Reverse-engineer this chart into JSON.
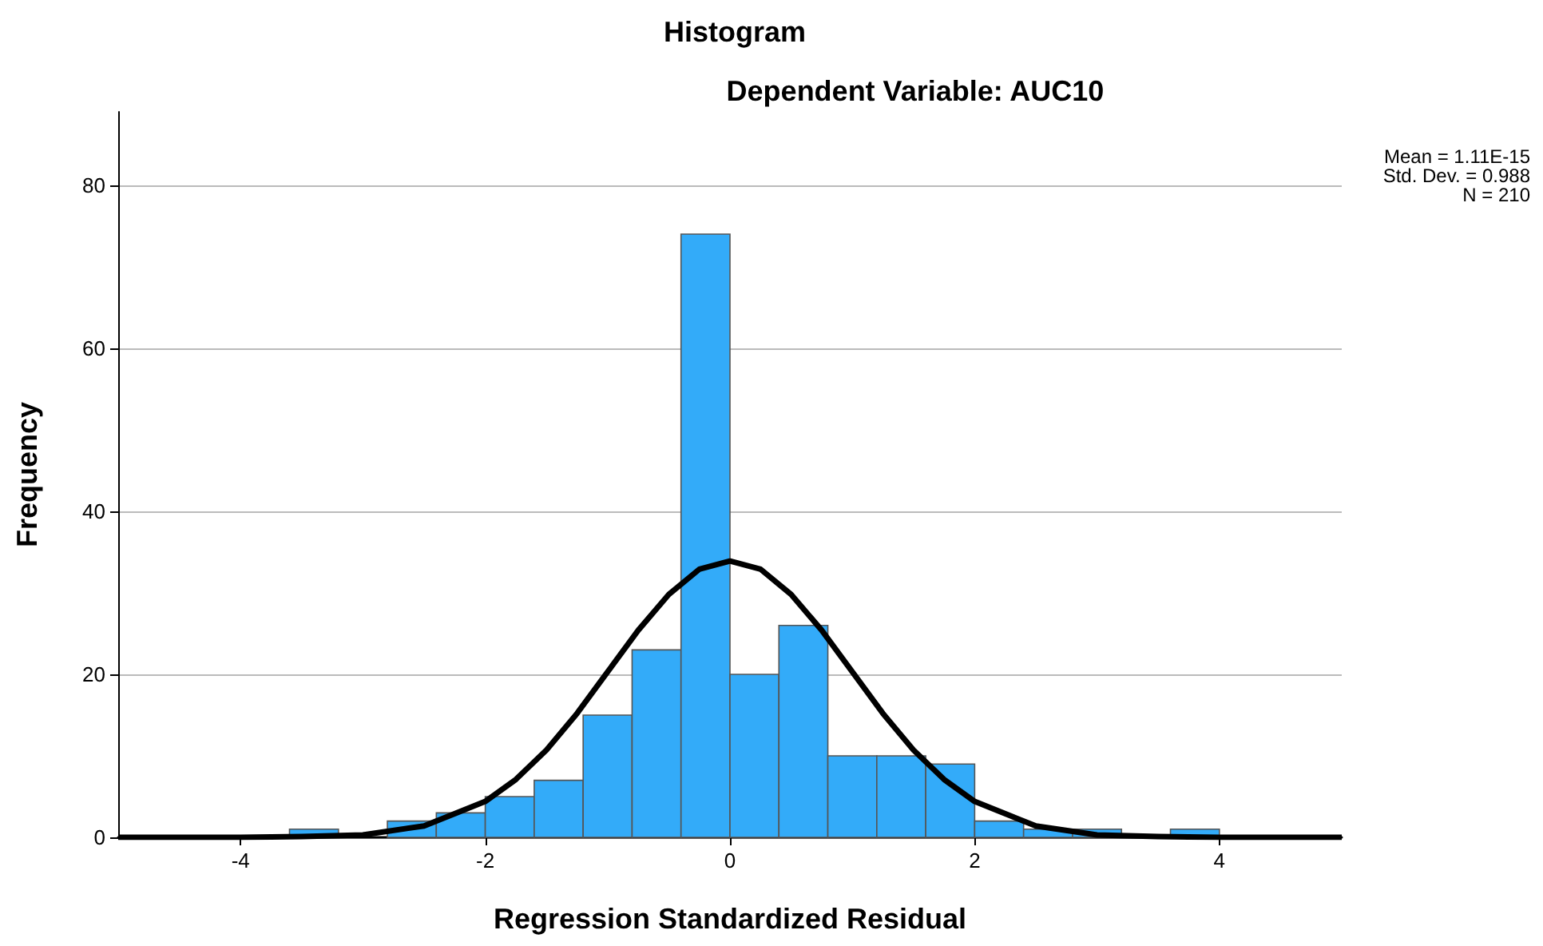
{
  "chart_data": {
    "type": "histogram",
    "title": "Histogram",
    "subtitle": "Dependent Variable: AUC10",
    "xlabel": "Regression Standardized Residual",
    "ylabel": "Frequency",
    "bins": [
      -3.6,
      -3.2,
      -2.8,
      -2.4,
      -2.0,
      -1.6,
      -1.2,
      -0.8,
      -0.4,
      0,
      0.4,
      0.8,
      1.2,
      1.6,
      2.0,
      2.4,
      2.8,
      3.2,
      3.6,
      4.0
    ],
    "values": [
      1,
      0,
      2,
      3,
      5,
      7,
      15,
      23,
      74,
      20,
      26,
      10,
      10,
      9,
      2,
      1,
      1,
      0,
      1
    ],
    "color": "#33abf9",
    "series": [
      {
        "type": "line",
        "color": "#000000",
        "x": [
          -5,
          -4,
          -3.5,
          -3,
          -2.5,
          -2,
          -1.75,
          -1.5,
          -1.25,
          -1,
          -0.75,
          -0.5,
          -0.25,
          0,
          0.25,
          0.5,
          0.75,
          1,
          1.25,
          1.5,
          1.75,
          2,
          2.5,
          3,
          3.5,
          4,
          5
        ],
        "values": [
          0,
          0,
          0.1,
          0.3,
          1.4,
          4.4,
          7.1,
          10.7,
          15.2,
          20.3,
          25.4,
          29.8,
          32.9,
          33.9,
          32.9,
          29.8,
          25.4,
          20.3,
          15.2,
          10.7,
          7.1,
          4.4,
          1.4,
          0.3,
          0.1,
          0,
          0
        ]
      }
    ],
    "xlim": [
      -5,
      5
    ],
    "xticks": [
      -4,
      -2,
      0,
      2,
      4
    ],
    "ylim": [
      0,
      89
    ],
    "yticks": [
      0,
      20,
      40,
      60,
      80
    ],
    "grid": "y",
    "annotations": [
      "Mean = 1.11E-15",
      "Std. Dev. = 0.988",
      "N = 210"
    ]
  }
}
